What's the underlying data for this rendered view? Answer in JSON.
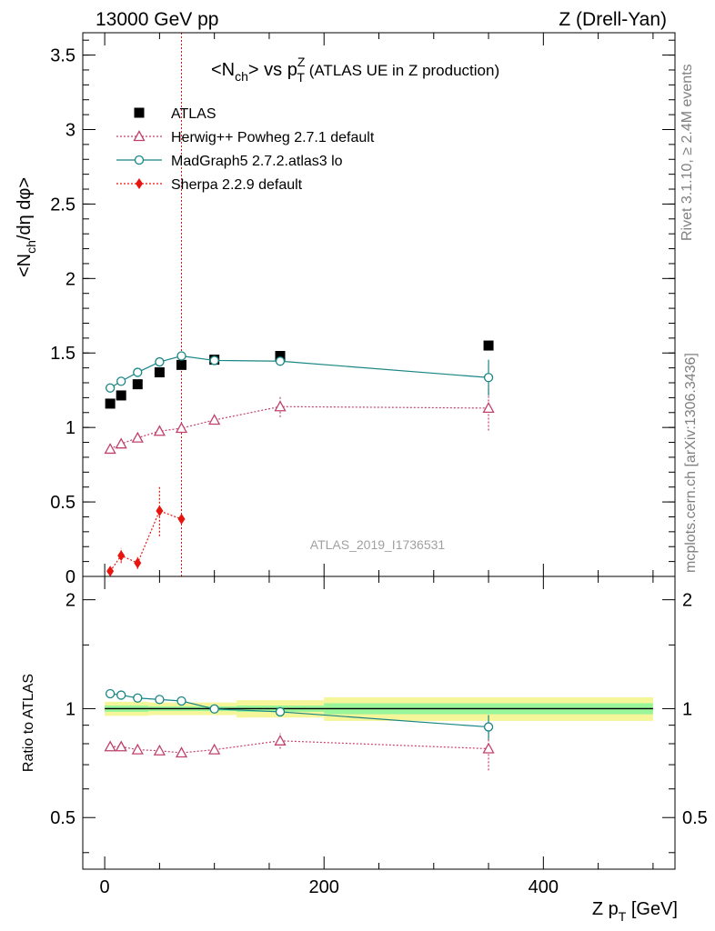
{
  "header": {
    "left": "13000 GeV pp",
    "right": "Z (Drell-Yan)"
  },
  "side": {
    "rivet": "Rivet 3.1.10, ≥ 2.4M events",
    "mcplots": "mcplots.cern.ch [arXiv:1306.3436]"
  },
  "colors": {
    "atlas": "#000000",
    "herwig": "#c0406e",
    "madgraph": "#1a8585",
    "sherpa": "#e8140e",
    "band_inner": "#99f599",
    "band_outer": "#f5f59a",
    "vline": "#e8140e"
  },
  "chart_data": [
    {
      "type": "line",
      "title": "<N_ch> vs p_T^Z (ATLAS UE in Z production)",
      "title_main": "<N",
      "title_sub": "ch",
      "title_mid": "> vs p",
      "title_sup": "Z",
      "title_sub2": "T",
      "title_rest": " (ATLAS UE in Z production)",
      "ylabel": "<N_ch/dη dφ>",
      "ylabel_parts": {
        "a": "<N",
        "sub": "ch",
        "b": "/dη dφ>"
      },
      "watermark": "ATLAS_2019_I1736531",
      "xlim": [
        -20,
        520
      ],
      "ylim": [
        0,
        3.65
      ],
      "yticks": [
        0,
        0.5,
        1,
        1.5,
        2,
        2.5,
        3,
        3.5
      ],
      "ytick_labels": [
        "0",
        "0.5",
        "1",
        "1.5",
        "2",
        "2.5",
        "3",
        "3.5"
      ],
      "vertical_line_x": 70,
      "legend_position": "top-left",
      "series": [
        {
          "name": "ATLAS",
          "marker": "square",
          "x": [
            5,
            15,
            30,
            50,
            70,
            100,
            160,
            350
          ],
          "y": [
            1.16,
            1.215,
            1.29,
            1.37,
            1.42,
            1.455,
            1.48,
            1.55
          ],
          "yerr": [
            0.01,
            0.01,
            0.01,
            0.01,
            0.01,
            0.01,
            0.01,
            0.01
          ]
        },
        {
          "name": "Herwig++ Powheg 2.7.1 default",
          "marker": "open-triangle",
          "x": [
            5,
            15,
            30,
            50,
            70,
            100,
            160,
            350
          ],
          "y": [
            0.855,
            0.89,
            0.93,
            0.975,
            0.995,
            1.05,
            1.14,
            1.13
          ],
          "yerr": [
            0.01,
            0.01,
            0.01,
            0.01,
            0.01,
            0.02,
            0.07,
            0.15
          ]
        },
        {
          "name": "MadGraph5 2.7.2.atlas3 lo",
          "marker": "open-circle",
          "x": [
            5,
            15,
            30,
            50,
            70,
            100,
            160,
            350
          ],
          "y": [
            1.265,
            1.31,
            1.37,
            1.44,
            1.48,
            1.45,
            1.445,
            1.335
          ],
          "yerr": [
            0.01,
            0.01,
            0.01,
            0.01,
            0.01,
            0.01,
            0.03,
            0.12
          ]
        },
        {
          "name": "Sherpa 2.2.9 default",
          "marker": "diamond",
          "x": [
            5,
            15,
            30,
            50,
            70
          ],
          "y": [
            0.035,
            0.14,
            0.09,
            0.44,
            0.385
          ],
          "yerr": [
            0.02,
            0.05,
            0.04,
            0.17,
            0.02
          ]
        }
      ]
    },
    {
      "type": "line",
      "ylabel": "Ratio to ATLAS",
      "xlabel": "Z p_T [GeV]",
      "xlabel_parts": {
        "a": "Z p",
        "sub": "T",
        "b": " [GeV]"
      },
      "xlim": [
        -20,
        520
      ],
      "ylim": [
        0.36,
        2.32
      ],
      "y_scale": "log",
      "xticks": [
        0,
        200,
        400
      ],
      "xtick_labels": [
        "0",
        "200",
        "400"
      ],
      "yticks": [
        0.5,
        1,
        2
      ],
      "ytick_labels": [
        "0.5",
        "1",
        "2"
      ],
      "reference_bands": {
        "edges": [
          0,
          40,
          120,
          200,
          500
        ],
        "inner": [
          0.02,
          0.015,
          0.02,
          0.035
        ],
        "outer": [
          0.045,
          0.04,
          0.055,
          0.075
        ]
      },
      "series": [
        {
          "name": "Herwig++ Powheg 2.7.1 default",
          "marker": "open-triangle",
          "x": [
            5,
            15,
            30,
            50,
            70,
            100,
            160,
            350
          ],
          "y": [
            0.785,
            0.785,
            0.77,
            0.765,
            0.755,
            0.77,
            0.815,
            0.775
          ],
          "yerr": [
            0.01,
            0.01,
            0.01,
            0.01,
            0.01,
            0.01,
            0.04,
            0.1
          ]
        },
        {
          "name": "MadGraph5 2.7.2.atlas3 lo",
          "marker": "open-circle",
          "x": [
            5,
            15,
            30,
            50,
            70,
            100,
            160,
            350
          ],
          "y": [
            1.1,
            1.09,
            1.07,
            1.06,
            1.05,
            0.998,
            0.98,
            0.89
          ],
          "yerr": [
            0.01,
            0.01,
            0.01,
            0.01,
            0.01,
            0.01,
            0.02,
            0.07
          ]
        }
      ]
    }
  ]
}
